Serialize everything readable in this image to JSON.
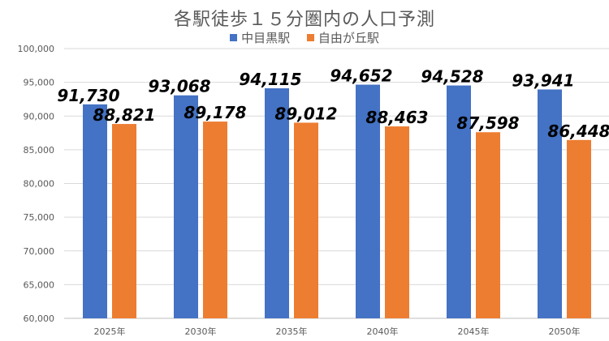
{
  "chart_data": {
    "type": "bar",
    "title": "各駅徒歩１５分圏内の人口予測",
    "categories": [
      "2025年",
      "2030年",
      "2035年",
      "2040年",
      "2045年",
      "2050年"
    ],
    "series": [
      {
        "name": "中目黒駅",
        "color": "#4472C4",
        "values": [
          91730,
          93068,
          94115,
          94652,
          94528,
          93941
        ],
        "labels": [
          "91,730",
          "93,068",
          "94,115",
          "94,652",
          "94,528",
          "93,941"
        ]
      },
      {
        "name": "自由が丘駅",
        "color": "#ED7D31",
        "values": [
          88821,
          89178,
          89012,
          88463,
          87598,
          86448
        ],
        "labels": [
          "88,821",
          "89,178",
          "89,012",
          "88,463",
          "87,598",
          "86,448"
        ]
      }
    ],
    "ylim": [
      60000,
      100000
    ],
    "yticks": [
      "60,000",
      "65,000",
      "70,000",
      "75,000",
      "80,000",
      "85,000",
      "90,000",
      "95,000",
      "100,000"
    ],
    "grid": true,
    "legend": "top"
  }
}
